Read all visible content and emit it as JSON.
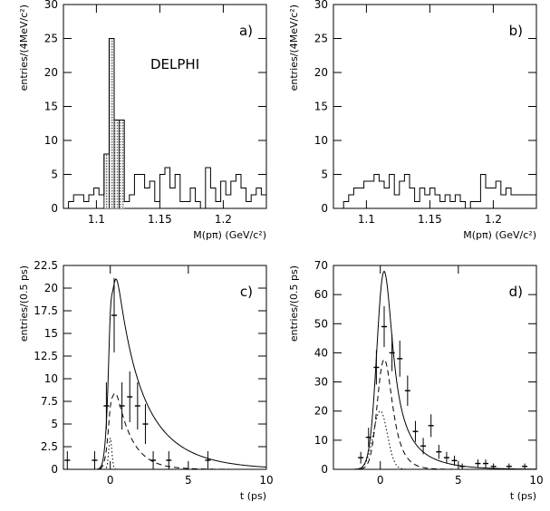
{
  "chart_data": [
    {
      "type": "histogram",
      "panel_label": "a)",
      "annotation": "DELPHI",
      "xlabel": "M(pπ) (GeV/c²)",
      "ylabel": "entries/(4MeV/c²)",
      "xlim": [
        1.074,
        1.234
      ],
      "ylim": [
        0,
        30
      ],
      "xticks": [
        {
          "v": 1.1,
          "t": "1.1"
        },
        {
          "v": 1.15,
          "t": "1.15"
        },
        {
          "v": 1.2,
          "t": "1.2"
        }
      ],
      "yticks": [
        {
          "v": 0,
          "t": "0"
        },
        {
          "v": 5,
          "t": "5"
        },
        {
          "v": 10,
          "t": "10"
        },
        {
          "v": 15,
          "t": "15"
        },
        {
          "v": 20,
          "t": "20"
        },
        {
          "v": 25,
          "t": "25"
        },
        {
          "v": 30,
          "t": "30"
        }
      ],
      "bin_edges": [
        1.074,
        1.078,
        1.082,
        1.086,
        1.09,
        1.094,
        1.098,
        1.102,
        1.106,
        1.11,
        1.114,
        1.118,
        1.122,
        1.126,
        1.13,
        1.134,
        1.138,
        1.142,
        1.146,
        1.15,
        1.154,
        1.158,
        1.162,
        1.166,
        1.17,
        1.174,
        1.178,
        1.182,
        1.186,
        1.19,
        1.194,
        1.198,
        1.202,
        1.206,
        1.21,
        1.214,
        1.218,
        1.222,
        1.226,
        1.23,
        1.234
      ],
      "counts": [
        0,
        1,
        2,
        2,
        1,
        2,
        3,
        2,
        8,
        25,
        13,
        13,
        1,
        2,
        5,
        5,
        3,
        4,
        1,
        5,
        6,
        3,
        5,
        1,
        1,
        3,
        1,
        0,
        6,
        3,
        1,
        4,
        2,
        4,
        5,
        3,
        1,
        2,
        3,
        2
      ],
      "shaded_range": [
        1.106,
        1.122
      ]
    },
    {
      "type": "histogram",
      "panel_label": "b)",
      "xlabel": "M(pπ) (GeV/c²)",
      "ylabel": "entries/(4MeV/c²)",
      "xlim": [
        1.074,
        1.234
      ],
      "ylim": [
        0,
        30
      ],
      "xticks": [
        {
          "v": 1.1,
          "t": "1.1"
        },
        {
          "v": 1.15,
          "t": "1.15"
        },
        {
          "v": 1.2,
          "t": "1.2"
        }
      ],
      "yticks": [
        {
          "v": 0,
          "t": "0"
        },
        {
          "v": 5,
          "t": "5"
        },
        {
          "v": 10,
          "t": "10"
        },
        {
          "v": 15,
          "t": "15"
        },
        {
          "v": 20,
          "t": "20"
        },
        {
          "v": 25,
          "t": "25"
        },
        {
          "v": 30,
          "t": "30"
        }
      ],
      "bin_edges": [
        1.074,
        1.078,
        1.082,
        1.086,
        1.09,
        1.094,
        1.098,
        1.102,
        1.106,
        1.11,
        1.114,
        1.118,
        1.122,
        1.126,
        1.13,
        1.134,
        1.138,
        1.142,
        1.146,
        1.15,
        1.154,
        1.158,
        1.162,
        1.166,
        1.17,
        1.174,
        1.178,
        1.182,
        1.186,
        1.19,
        1.194,
        1.198,
        1.202,
        1.206,
        1.21,
        1.214,
        1.218,
        1.222,
        1.226,
        1.23,
        1.234
      ],
      "counts": [
        0,
        0,
        1,
        2,
        3,
        3,
        4,
        4,
        5,
        4,
        3,
        5,
        2,
        4,
        5,
        3,
        1,
        3,
        2,
        3,
        2,
        1,
        2,
        1,
        2,
        1,
        0,
        1,
        1,
        5,
        3,
        3,
        4,
        2,
        3,
        2,
        2,
        2,
        2,
        2
      ],
      "shaded_range": null
    },
    {
      "type": "scatter_with_curves",
      "panel_label": "c)",
      "xlabel": "t (ps)",
      "ylabel": "entries/(0.5 ps)",
      "xlim": [
        -3,
        10
      ],
      "ylim": [
        0,
        22.5
      ],
      "xticks": [
        {
          "v": 0,
          "t": "0"
        },
        {
          "v": 5,
          "t": "5"
        },
        {
          "v": 10,
          "t": "10"
        }
      ],
      "yticks": [
        {
          "v": 0,
          "t": "0"
        },
        {
          "v": 2.5,
          "t": "2.5"
        },
        {
          "v": 5,
          "t": "5"
        },
        {
          "v": 7.5,
          "t": "7.5"
        },
        {
          "v": 10,
          "t": "10"
        },
        {
          "v": 12.5,
          "t": "12.5"
        },
        {
          "v": 15,
          "t": "15"
        },
        {
          "v": 17.5,
          "t": "17.5"
        },
        {
          "v": 20,
          "t": "20"
        },
        {
          "v": 22.5,
          "t": "22.5"
        }
      ],
      "points": [
        {
          "x": -2.75,
          "y": 1,
          "err": 1
        },
        {
          "x": -1.0,
          "y": 1,
          "err": 1
        },
        {
          "x": -0.25,
          "y": 7,
          "err": 2.6
        },
        {
          "x": 0.25,
          "y": 17,
          "err": 4.1
        },
        {
          "x": 0.75,
          "y": 7,
          "err": 2.6
        },
        {
          "x": 1.25,
          "y": 8,
          "err": 2.8
        },
        {
          "x": 1.75,
          "y": 7,
          "err": 2.6
        },
        {
          "x": 2.25,
          "y": 5,
          "err": 2.2
        },
        {
          "x": 2.75,
          "y": 1,
          "err": 1
        },
        {
          "x": 3.75,
          "y": 1,
          "err": 1
        },
        {
          "x": 6.25,
          "y": 1,
          "err": 1
        }
      ],
      "curves": {
        "amplitude": 21,
        "prompt_frac": 0.14,
        "fast_frac": 0.34,
        "tau_fast": 1.0,
        "tau_slow": 2.4,
        "sigma": 0.25,
        "prompt_sigma": 0.1
      }
    },
    {
      "type": "scatter_with_curves",
      "panel_label": "d)",
      "xlabel": "t (ps)",
      "ylabel": "entries/(0.5 ps)",
      "xlim": [
        -3,
        10
      ],
      "ylim": [
        0,
        70
      ],
      "xticks": [
        {
          "v": 0,
          "t": "0"
        },
        {
          "v": 5,
          "t": "5"
        },
        {
          "v": 10,
          "t": "10"
        }
      ],
      "yticks": [
        {
          "v": 0,
          "t": "0"
        },
        {
          "v": 10,
          "t": "10"
        },
        {
          "v": 20,
          "t": "20"
        },
        {
          "v": 30,
          "t": "30"
        },
        {
          "v": 40,
          "t": "40"
        },
        {
          "v": 50,
          "t": "50"
        },
        {
          "v": 60,
          "t": "60"
        },
        {
          "v": 70,
          "t": "70"
        }
      ],
      "points": [
        {
          "x": -1.25,
          "y": 4,
          "err": 2
        },
        {
          "x": -0.75,
          "y": 11,
          "err": 3.3
        },
        {
          "x": -0.25,
          "y": 35,
          "err": 5.9
        },
        {
          "x": 0.25,
          "y": 49,
          "err": 7
        },
        {
          "x": 0.75,
          "y": 40,
          "err": 6.3
        },
        {
          "x": 1.25,
          "y": 38,
          "err": 6.2
        },
        {
          "x": 1.75,
          "y": 27,
          "err": 5.2
        },
        {
          "x": 2.25,
          "y": 13,
          "err": 3.6
        },
        {
          "x": 2.75,
          "y": 8,
          "err": 2.8
        },
        {
          "x": 3.25,
          "y": 15,
          "err": 3.9
        },
        {
          "x": 3.75,
          "y": 6,
          "err": 2.4
        },
        {
          "x": 4.25,
          "y": 4,
          "err": 2
        },
        {
          "x": 4.75,
          "y": 3,
          "err": 1.7
        },
        {
          "x": 5.25,
          "y": 1,
          "err": 1
        },
        {
          "x": 6.25,
          "y": 2,
          "err": 1.4
        },
        {
          "x": 6.75,
          "y": 2,
          "err": 1.4
        },
        {
          "x": 7.25,
          "y": 1,
          "err": 1
        },
        {
          "x": 8.25,
          "y": 1,
          "err": 1
        },
        {
          "x": 9.25,
          "y": 1,
          "err": 1
        }
      ],
      "curves": {
        "amplitude": 68,
        "prompt_frac": 0.38,
        "fast_frac": 0.62,
        "tau_fast": 0.55,
        "tau_slow": 1.6,
        "sigma": 0.35,
        "prompt_sigma": 0.45
      }
    }
  ]
}
